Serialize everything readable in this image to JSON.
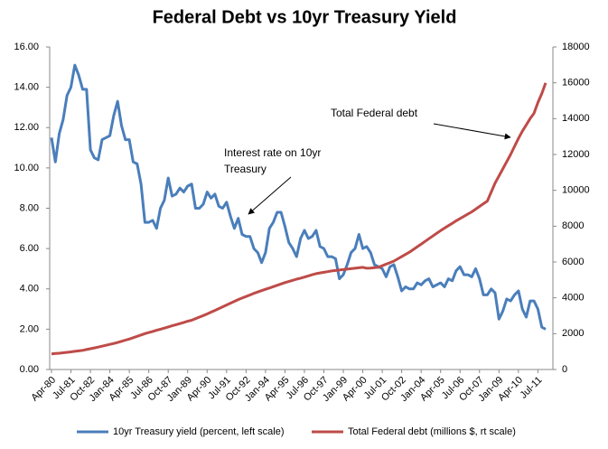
{
  "chart_data": {
    "type": "line",
    "title": "Federal Debt vs 10yr Treasury Yield",
    "annotations": [
      [
        "Interest rate on 10yr",
        "Treasury"
      ],
      "Total  Federal debt"
    ],
    "categories": [
      "Apr-80",
      null,
      null,
      null,
      null,
      "Jul-81",
      null,
      null,
      null,
      null,
      "Oct-82",
      null,
      null,
      null,
      null,
      "Jan-84",
      null,
      null,
      null,
      null,
      "Apr-85",
      null,
      null,
      null,
      null,
      "Jul-86",
      null,
      null,
      null,
      null,
      "Oct-87",
      null,
      null,
      null,
      null,
      "Jan-89",
      null,
      null,
      null,
      null,
      "Apr-90",
      null,
      null,
      null,
      null,
      "Jul-91",
      null,
      null,
      null,
      null,
      "Oct-92",
      null,
      null,
      null,
      null,
      "Jan-94",
      null,
      null,
      null,
      null,
      "Apr-95",
      null,
      null,
      null,
      null,
      "Jul-96",
      null,
      null,
      null,
      null,
      "Oct-97",
      null,
      null,
      null,
      null,
      "Jan-99",
      null,
      null,
      null,
      null,
      "Apr-00",
      null,
      null,
      null,
      null,
      "Jul-01",
      null,
      null,
      null,
      null,
      "Oct-02",
      null,
      null,
      null,
      null,
      "Jan-04",
      null,
      null,
      null,
      null,
      "Apr-05",
      null,
      null,
      null,
      null,
      "Jul-06",
      null,
      null,
      null,
      null,
      "Oct-07",
      null,
      null,
      null,
      null,
      "Jan-09",
      null,
      null,
      null,
      null,
      "Apr-10",
      null,
      null,
      null,
      null,
      "Jul-11",
      null,
      null
    ],
    "series": [
      {
        "name": "10yr Treasury yield (percent, left scale)",
        "color": "#4a7ebb",
        "axis": "y",
        "values": [
          11.5,
          10.3,
          11.7,
          12.4,
          13.6,
          14.0,
          15.1,
          14.6,
          13.9,
          13.9,
          10.9,
          10.5,
          10.4,
          11.4,
          11.5,
          11.6,
          12.6,
          13.3,
          12.1,
          11.4,
          11.4,
          10.3,
          10.2,
          9.2,
          7.3,
          7.3,
          7.4,
          7.0,
          8.0,
          8.4,
          9.5,
          8.6,
          8.7,
          9.0,
          8.8,
          9.1,
          9.2,
          8.0,
          8.0,
          8.2,
          8.8,
          8.5,
          8.7,
          8.1,
          8.0,
          8.3,
          7.6,
          7.0,
          7.5,
          6.7,
          6.6,
          6.6,
          6.0,
          5.8,
          5.3,
          5.8,
          7.0,
          7.3,
          7.8,
          7.8,
          7.1,
          6.3,
          6.0,
          5.6,
          6.5,
          6.9,
          6.5,
          6.6,
          6.9,
          6.1,
          6.0,
          5.6,
          5.6,
          5.5,
          4.5,
          4.7,
          5.2,
          5.8,
          6.0,
          6.7,
          6.0,
          6.1,
          5.8,
          5.2,
          5.1,
          5.0,
          4.6,
          5.1,
          5.2,
          4.6,
          3.9,
          4.1,
          4.0,
          4.0,
          4.3,
          4.2,
          4.4,
          4.5,
          4.1,
          4.2,
          4.3,
          4.1,
          4.5,
          4.4,
          4.9,
          5.1,
          4.7,
          4.7,
          4.6,
          5.0,
          4.5,
          3.7,
          3.7,
          4.0,
          3.8,
          2.5,
          2.9,
          3.5,
          3.4,
          3.7,
          3.9,
          3.0,
          2.6,
          3.4,
          3.4,
          3.0,
          2.1,
          2.0
        ]
      },
      {
        "name": "Total Federal debt (millions $, rt scale)",
        "color": "#be4b48",
        "axis": "y2",
        "values": [
          870,
          890,
          910,
          935,
          960,
          985,
          1015,
          1040,
          1070,
          1115,
          1160,
          1205,
          1250,
          1300,
          1350,
          1400,
          1450,
          1510,
          1575,
          1640,
          1700,
          1775,
          1850,
          1925,
          2000,
          2060,
          2125,
          2190,
          2250,
          2310,
          2375,
          2440,
          2500,
          2560,
          2625,
          2690,
          2750,
          2840,
          2925,
          3010,
          3100,
          3200,
          3300,
          3400,
          3500,
          3600,
          3700,
          3800,
          3900,
          3990,
          4075,
          4160,
          4250,
          4325,
          4400,
          4475,
          4550,
          4625,
          4700,
          4775,
          4850,
          4910,
          4975,
          5040,
          5100,
          5160,
          5225,
          5290,
          5350,
          5390,
          5425,
          5460,
          5500,
          5525,
          5550,
          5575,
          5600,
          5625,
          5650,
          5675,
          5700,
          5650,
          5660,
          5680,
          5700,
          5790,
          5880,
          5960,
          6050,
          6175,
          6300,
          6425,
          6550,
          6700,
          6850,
          7000,
          7150,
          7300,
          7450,
          7600,
          7750,
          7890,
          8025,
          8160,
          8300,
          8425,
          8550,
          8675,
          8800,
          8950,
          9100,
          9250,
          9400,
          9900,
          10400,
          10800,
          11200,
          11600,
          12000,
          12450,
          12900,
          13300,
          13650,
          14000,
          14300,
          14900,
          15400,
          16000
        ]
      }
    ],
    "ylim": [
      0,
      16
    ],
    "yticks": [
      {
        "value": 0,
        "label": "0.00"
      },
      {
        "value": 2,
        "label": "2.00"
      },
      {
        "value": 4,
        "label": "4.00"
      },
      {
        "value": 6,
        "label": "6.00"
      },
      {
        "value": 8,
        "label": "8.00"
      },
      {
        "value": 10,
        "label": "10.00"
      },
      {
        "value": 12,
        "label": "12.00"
      },
      {
        "value": 14,
        "label": "14.00"
      },
      {
        "value": 16,
        "label": "16.00"
      }
    ],
    "y2lim": [
      0,
      18000
    ],
    "y2ticks": [
      0,
      2000,
      4000,
      6000,
      8000,
      10000,
      12000,
      14000,
      16000,
      18000
    ],
    "grid": false,
    "legend": "bottom"
  }
}
